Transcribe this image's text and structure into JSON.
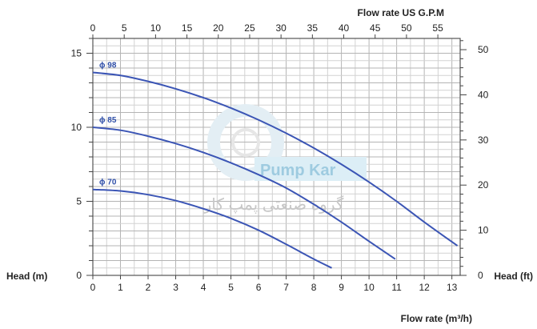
{
  "chart_data": {
    "type": "line",
    "title": "",
    "xlabel": "Flow rate  (m³/h)",
    "ylabel": "Head (m)",
    "x2label": "Flow rate US  G.P.M",
    "y2label": "Head (ft)",
    "xlim": [
      0,
      13.3
    ],
    "ylim": [
      0,
      16
    ],
    "x_ticks": [
      0,
      1,
      2,
      3,
      4,
      5,
      6,
      7,
      8,
      9,
      10,
      11,
      12,
      13
    ],
    "y_ticks": [
      0,
      5,
      10,
      15
    ],
    "x2_ticks": [
      0,
      5,
      10,
      15,
      20,
      25,
      30,
      35,
      40,
      45,
      50,
      55
    ],
    "y2_ticks": [
      0,
      10,
      20,
      30,
      40,
      50
    ],
    "x2_units_per_x": 4.4029,
    "y2_units_per_y": 3.2808,
    "grid": true,
    "series": [
      {
        "name": "ϕ 98",
        "color": "#3b55b5",
        "x": [
          0,
          1,
          2,
          3,
          4,
          5,
          6,
          7,
          8,
          9,
          10,
          11,
          12,
          13.2
        ],
        "y": [
          13.7,
          13.5,
          13.1,
          12.6,
          12.0,
          11.3,
          10.5,
          9.6,
          8.6,
          7.5,
          6.3,
          5.0,
          3.6,
          2.0
        ]
      },
      {
        "name": "ϕ 85",
        "color": "#3b55b5",
        "x": [
          0,
          1,
          2,
          3,
          4,
          5,
          6,
          7,
          8,
          9,
          10,
          10.95
        ],
        "y": [
          10.0,
          9.8,
          9.4,
          8.9,
          8.3,
          7.6,
          6.8,
          5.9,
          4.8,
          3.6,
          2.3,
          1.1
        ]
      },
      {
        "name": "ϕ 70",
        "color": "#3b55b5",
        "x": [
          0,
          1,
          2,
          3,
          4,
          5,
          6,
          7,
          8,
          8.65
        ],
        "y": [
          5.8,
          5.7,
          5.45,
          5.05,
          4.5,
          3.85,
          3.05,
          2.1,
          1.1,
          0.5
        ]
      }
    ]
  },
  "watermark": {
    "brand": "Pump Kar",
    "persian": "گروه صنعتی پمپ کار"
  }
}
